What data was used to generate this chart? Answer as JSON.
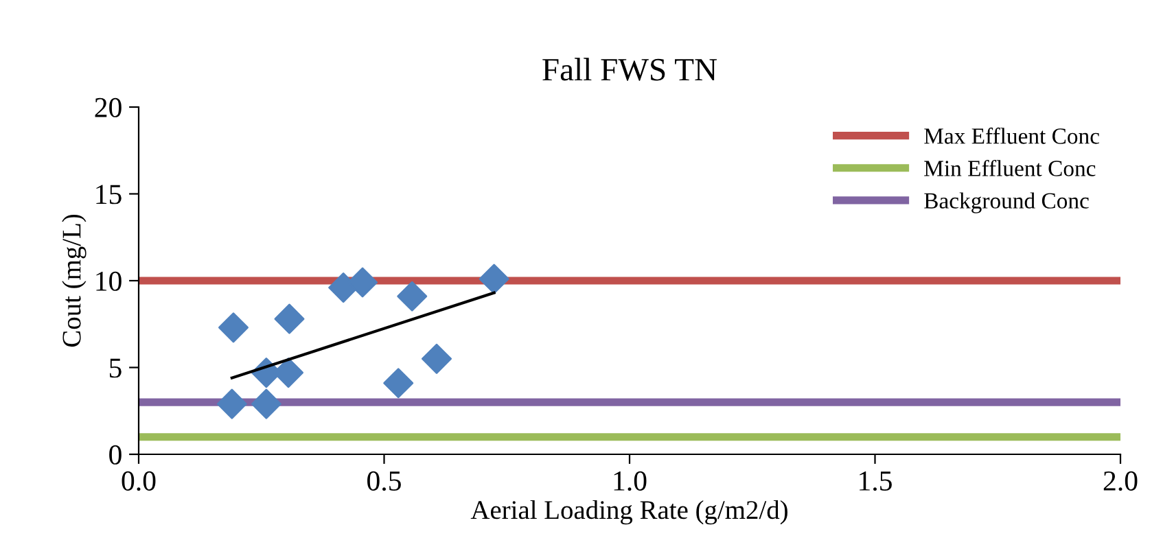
{
  "chart_data": {
    "type": "scatter",
    "title": "Fall FWS TN",
    "xlabel": "Aerial Loading Rate (g/m2/d)",
    "ylabel": "Cout (mg/L)",
    "xlim": [
      0,
      2
    ],
    "ylim": [
      0,
      20
    ],
    "xticks": [
      {
        "value": 0,
        "label": "0.0"
      },
      {
        "value": 0.5,
        "label": "0.5"
      },
      {
        "value": 1,
        "label": "1.0"
      },
      {
        "value": 1.5,
        "label": "1.5"
      },
      {
        "value": 2,
        "label": "2.0"
      }
    ],
    "yticks": [
      0,
      5,
      10,
      15,
      20
    ],
    "grid": false,
    "legend": "top right",
    "series": [
      {
        "marker": "diamond",
        "color": "#4f81bd",
        "x": [
          0.193,
          0.19,
          0.26,
          0.26,
          0.305,
          0.307,
          0.417,
          0.456,
          0.557,
          0.529,
          0.607,
          0.724
        ],
        "values": [
          7.3,
          2.9,
          4.7,
          2.9,
          4.7,
          7.8,
          9.6,
          9.9,
          9.1,
          4.1,
          5.5,
          10.1
        ]
      },
      {
        "type": "line",
        "color": "#000000",
        "x": [
          0.19,
          0.724
        ],
        "values": [
          4.4,
          9.3
        ]
      },
      {
        "type": "line",
        "name": "Max Effluent Conc",
        "color": "#c0504d",
        "x": [
          0,
          2
        ],
        "values": [
          10,
          10
        ]
      },
      {
        "type": "line",
        "name": "Min Effluent Conc",
        "color": "#9bbb59",
        "x": [
          0,
          2
        ],
        "values": [
          1,
          1
        ]
      },
      {
        "type": "line",
        "name": "Background Conc",
        "color": "#8064a2",
        "x": [
          0,
          2
        ],
        "values": [
          3,
          3
        ]
      }
    ]
  }
}
